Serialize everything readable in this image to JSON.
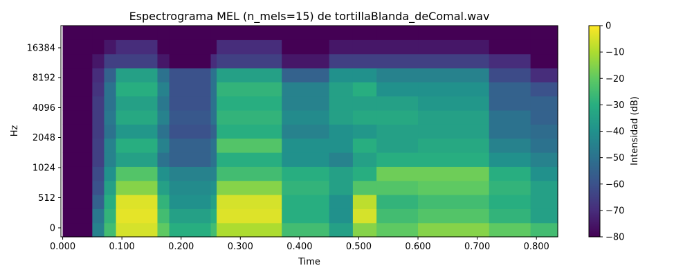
{
  "chart_data": {
    "type": "heatmap",
    "title": "Espectrograma MEL (n_mels=15) de tortillaBlanda_deComal.wav",
    "xlabel": "Time",
    "ylabel": "Hz",
    "xlim": [
      -0.003,
      0.836
    ],
    "x_ticks": [
      "0.000",
      "0.100",
      "0.200",
      "0.300",
      "0.400",
      "0.500",
      "0.600",
      "0.700",
      "0.800"
    ],
    "x_tick_values": [
      0.0,
      0.1,
      0.2,
      0.3,
      0.4,
      0.5,
      0.6,
      0.7,
      0.8
    ],
    "y_ticks": [
      "0",
      "512",
      "1024",
      "2048",
      "4096",
      "8192",
      "16384"
    ],
    "y_scale": "mel",
    "n_mels": 15,
    "colormap": "viridis",
    "colorbar": {
      "label": "Intensidad (dB)",
      "range": [
        -80,
        0
      ],
      "ticks": [
        "0",
        "−10",
        "−20",
        "−30",
        "−40",
        "−50",
        "−60",
        "−70",
        "−80"
      ],
      "tick_values": [
        0,
        -10,
        -20,
        -30,
        -40,
        -50,
        -60,
        -70,
        -80
      ]
    },
    "segments": [
      {
        "start": 0.0,
        "end": 0.05,
        "profile": [
          -80,
          -80,
          -80,
          -80,
          -80,
          -80,
          -80,
          -80,
          -80,
          -80,
          -80,
          -80,
          -80,
          -80,
          -80
        ]
      },
      {
        "start": 0.05,
        "end": 0.07,
        "profile": [
          -45,
          -48,
          -55,
          -60,
          -62,
          -65,
          -65,
          -66,
          -66,
          -66,
          -68,
          -70,
          -75,
          -80,
          -80
        ]
      },
      {
        "start": 0.07,
        "end": 0.09,
        "profile": [
          -25,
          -28,
          -30,
          -35,
          -40,
          -45,
          -45,
          -50,
          -48,
          -50,
          -50,
          -55,
          -65,
          -75,
          -80
        ]
      },
      {
        "start": 0.09,
        "end": 0.16,
        "profile": [
          -5,
          -3,
          -4,
          -15,
          -22,
          -35,
          -30,
          -38,
          -32,
          -35,
          -30,
          -35,
          -65,
          -70,
          -80
        ]
      },
      {
        "start": 0.16,
        "end": 0.18,
        "profile": [
          -20,
          -25,
          -28,
          -35,
          -40,
          -50,
          -45,
          -50,
          -45,
          -48,
          -45,
          -50,
          -75,
          -80,
          -80
        ]
      },
      {
        "start": 0.18,
        "end": 0.25,
        "profile": [
          -30,
          -35,
          -40,
          -42,
          -45,
          -55,
          -55,
          -60,
          -58,
          -60,
          -60,
          -60,
          -80,
          -80,
          -80
        ]
      },
      {
        "start": 0.25,
        "end": 0.26,
        "profile": [
          -25,
          -30,
          -35,
          -40,
          -45,
          -50,
          -50,
          -55,
          -50,
          -50,
          -50,
          -50,
          -70,
          -80,
          -80
        ]
      },
      {
        "start": 0.26,
        "end": 0.37,
        "profile": [
          -10,
          -4,
          -5,
          -15,
          -25,
          -30,
          -22,
          -30,
          -28,
          -30,
          -28,
          -35,
          -65,
          -70,
          -80
        ]
      },
      {
        "start": 0.37,
        "end": 0.45,
        "profile": [
          -25,
          -30,
          -30,
          -28,
          -30,
          -40,
          -40,
          -45,
          -42,
          -45,
          -45,
          -55,
          -75,
          -80,
          -80
        ]
      },
      {
        "start": 0.45,
        "end": 0.49,
        "profile": [
          -35,
          -40,
          -40,
          -35,
          -35,
          -45,
          -40,
          -40,
          -35,
          -35,
          -35,
          -40,
          -65,
          -75,
          -80
        ]
      },
      {
        "start": 0.49,
        "end": 0.53,
        "profile": [
          -15,
          -5,
          -8,
          -22,
          -30,
          -35,
          -30,
          -38,
          -32,
          -35,
          -30,
          -40,
          -65,
          -75,
          -80
        ]
      },
      {
        "start": 0.53,
        "end": 0.6,
        "profile": [
          -20,
          -25,
          -28,
          -22,
          -18,
          -30,
          -35,
          -35,
          -32,
          -35,
          -40,
          -45,
          -65,
          -75,
          -80
        ]
      },
      {
        "start": 0.6,
        "end": 0.72,
        "profile": [
          -15,
          -22,
          -25,
          -20,
          -18,
          -30,
          -32,
          -35,
          -35,
          -38,
          -40,
          -45,
          -65,
          -75,
          -80
        ]
      },
      {
        "start": 0.72,
        "end": 0.79,
        "profile": [
          -20,
          -28,
          -30,
          -28,
          -30,
          -40,
          -45,
          -50,
          -50,
          -55,
          -55,
          -62,
          -70,
          -80,
          -80
        ]
      },
      {
        "start": 0.79,
        "end": 0.836,
        "profile": [
          -25,
          -35,
          -35,
          -35,
          -40,
          -45,
          -50,
          -52,
          -55,
          -55,
          -60,
          -70,
          -80,
          -80,
          -80
        ]
      }
    ]
  }
}
